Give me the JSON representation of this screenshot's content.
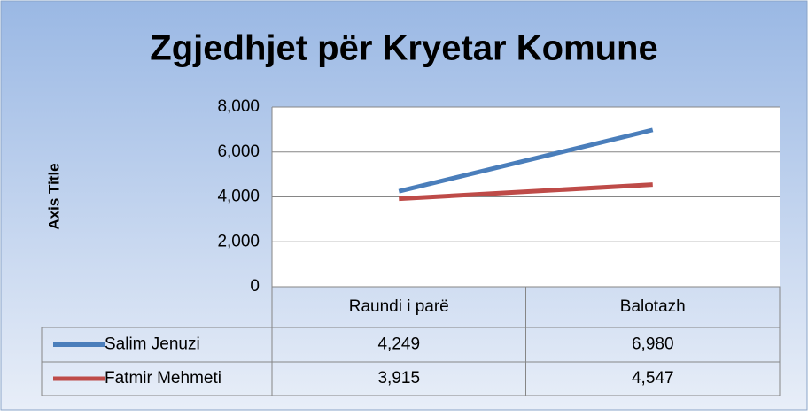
{
  "chart_data": {
    "type": "line",
    "title": "Zgjedhjet për Kryetar Komune",
    "y_label": "Axis Title",
    "categories": [
      "Raundi i parë",
      "Balotazh"
    ],
    "series": [
      {
        "name": "Salim Jenuzi",
        "color": "#4a7ebb",
        "values": [
          4249,
          6980
        ],
        "value_labels": [
          "4,249",
          "6,980"
        ]
      },
      {
        "name": "Fatmir Mehmeti",
        "color": "#be4b48",
        "values": [
          3915,
          4547
        ],
        "value_labels": [
          "3,915",
          "4,547"
        ]
      }
    ],
    "ylim": [
      0,
      8000
    ],
    "yticks": [
      0,
      {
        "value": 2000,
        "label": "2,000"
      },
      {
        "value": 4000,
        "label": "4,000"
      },
      {
        "value": 6000,
        "label": "6,000"
      },
      {
        "value": 8000,
        "label": "8,000"
      }
    ],
    "grid": true,
    "data_table": true
  }
}
